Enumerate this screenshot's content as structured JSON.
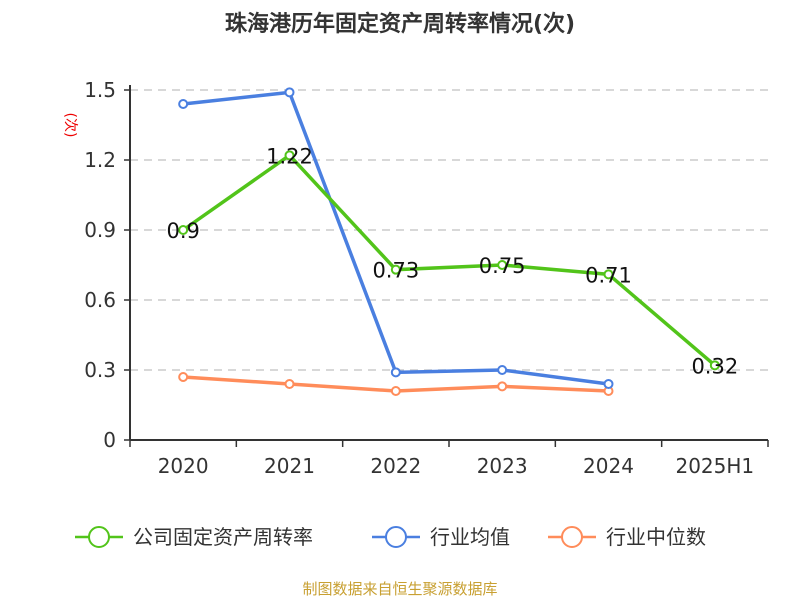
{
  "title": "珠海港历年固定资产周转率情况(次)",
  "source": "制图数据来自恒生聚源数据库",
  "chart_data": {
    "type": "line",
    "title": "珠海港历年固定资产周转率情况(次)",
    "ylabel": "(次)",
    "ylim": [
      0,
      1.5
    ],
    "yticks": [
      "0",
      "0.3",
      "0.6",
      "0.9",
      "1.2",
      "1.5"
    ],
    "grid": true,
    "legend_position": "bottom",
    "categories": [
      "2020",
      "2021",
      "2022",
      "2023",
      "2024",
      "2025H1"
    ],
    "series": [
      {
        "name": "公司固定资产周转率",
        "color": "#52c41a",
        "values": [
          0.9,
          1.22,
          0.73,
          0.75,
          0.71,
          0.32
        ],
        "labels": [
          "0.9",
          "1.22",
          "0.73",
          "0.75",
          "0.71",
          "0.32"
        ]
      },
      {
        "name": "行业均值",
        "color": "#4a7fe0",
        "values": [
          1.44,
          1.49,
          0.29,
          0.3,
          0.24,
          null
        ]
      },
      {
        "name": "行业中位数",
        "color": "#ff8c5a",
        "values": [
          0.27,
          0.24,
          0.21,
          0.23,
          0.21,
          null
        ]
      }
    ]
  }
}
